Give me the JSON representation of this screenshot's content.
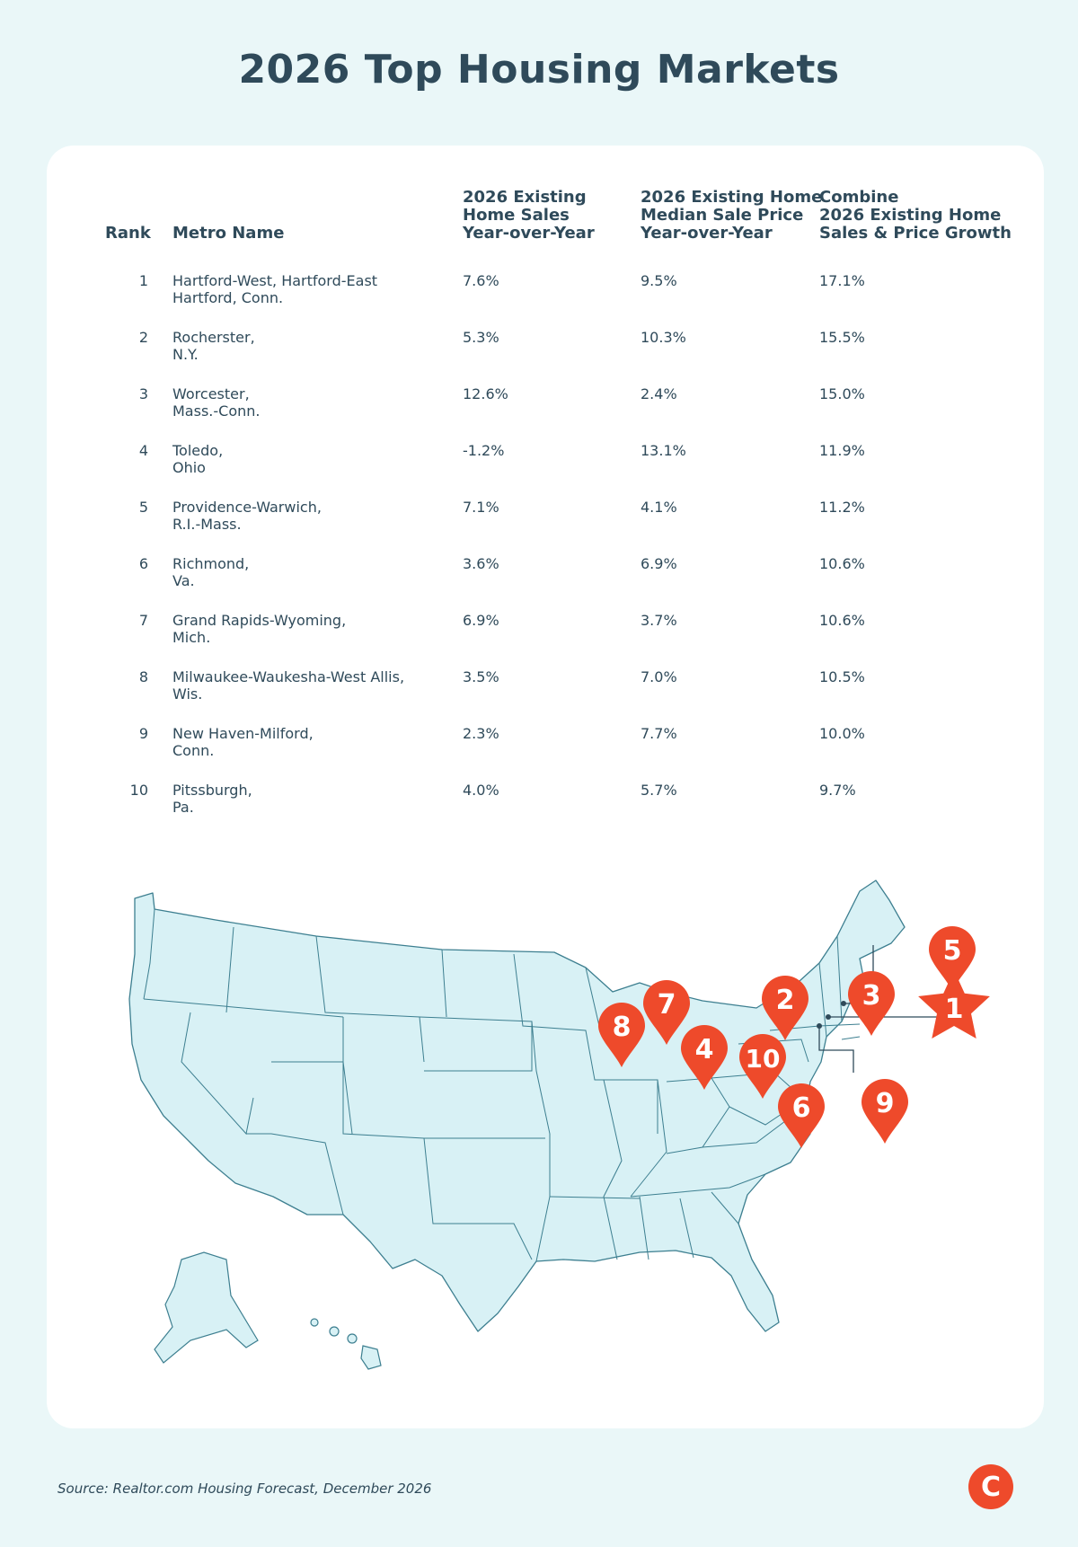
{
  "title": "2026 Top Housing Markets",
  "table": {
    "headers": {
      "rank": "Rank",
      "metro": "Metro Name",
      "sales": "2026 Existing\nHome Sales\nYear-over-Year",
      "price": "2026 Existing Home\nMedian Sale Price\nYear-over-Year",
      "combined": "Combine\n2026 Existing Home\nSales & Price Growth"
    },
    "rows": [
      {
        "rank": "1",
        "metro": "Hartford-West, Hartford-East\nHartford, Conn.",
        "sales": "7.6%",
        "price": "9.5%",
        "combined": "17.1%"
      },
      {
        "rank": "2",
        "metro": "Rocherster,\nN.Y.",
        "sales": "5.3%",
        "price": "10.3%",
        "combined": "15.5%"
      },
      {
        "rank": "3",
        "metro": "Worcester,\nMass.-Conn.",
        "sales": "12.6%",
        "price": "2.4%",
        "combined": "15.0%"
      },
      {
        "rank": "4",
        "metro": "Toledo,\nOhio",
        "sales": "-1.2%",
        "price": "13.1%",
        "combined": "11.9%"
      },
      {
        "rank": "5",
        "metro": "Providence-Warwich,\nR.I.-Mass.",
        "sales": "7.1%",
        "price": "4.1%",
        "combined": "11.2%"
      },
      {
        "rank": "6",
        "metro": "Richmond,\nVa.",
        "sales": "3.6%",
        "price": "6.9%",
        "combined": "10.6%"
      },
      {
        "rank": "7",
        "metro": "Grand Rapids-Wyoming,\nMich.",
        "sales": "6.9%",
        "price": "3.7%",
        "combined": "10.6%"
      },
      {
        "rank": "8",
        "metro": "Milwaukee-Waukesha-West Allis,\nWis.",
        "sales": "3.5%",
        "price": "7.0%",
        "combined": "10.5%"
      },
      {
        "rank": "9",
        "metro": "New Haven-Milford,\nConn.",
        "sales": "2.3%",
        "price": "7.7%",
        "combined": "10.0%"
      },
      {
        "rank": "10",
        "metro": "Pitssburgh,\nPa.",
        "sales": "4.0%",
        "price": "5.7%",
        "combined": "9.7%"
      }
    ]
  },
  "map": {
    "markers": [
      "1",
      "2",
      "3",
      "4",
      "5",
      "6",
      "7",
      "8",
      "9",
      "10"
    ],
    "top_marker_shape": "star",
    "colors": {
      "land": "#d8f1f5",
      "border": "#3d7f90",
      "marker": "#ee4a2b"
    }
  },
  "source": "Source: Realtor.com Housing Forecast, December 2026",
  "logo_letter": "C",
  "colors": {
    "background": "#eaf7f8",
    "card": "#ffffff",
    "text": "#2f4a5a",
    "accent": "#ee4a2b"
  }
}
